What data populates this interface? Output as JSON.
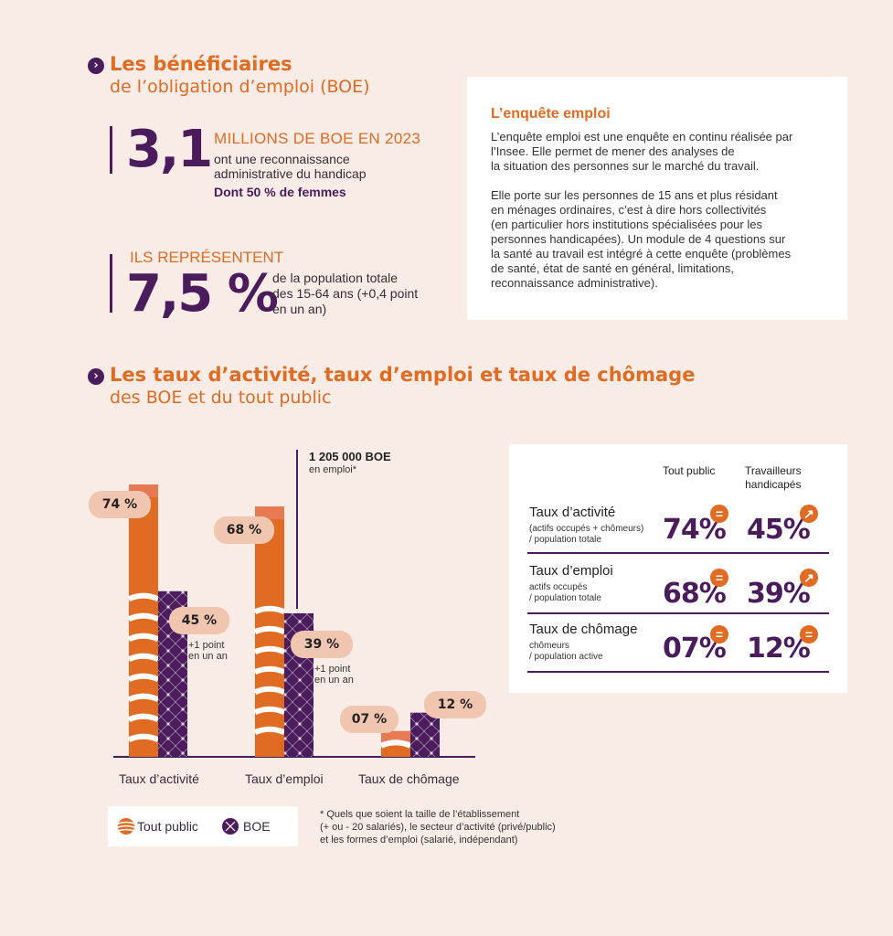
{
  "sections": {
    "s1": {
      "title": "Les bénéficiaires",
      "subtitle": "de l’obligation d’emploi (BOE)"
    },
    "s2": {
      "title": "Les taux d’activité, taux d’emploi et taux de chômage",
      "subtitle": "des BOE et du tout public"
    }
  },
  "stat1": {
    "value": "3,1",
    "headline": "MILLIONS DE BOE EN 2023",
    "line1": "ont une reconnaissance",
    "line2": "administrative du handicap",
    "highlight": "Dont 50 % de femmes"
  },
  "stat2": {
    "headline": "ILS REPRÉSENTENT",
    "value": "7,5 %",
    "line1": "de la population totale",
    "line2": "des 15-64 ans (+0,4 point",
    "line3": "en un an)"
  },
  "box": {
    "title": "L’enquête emploi",
    "p1": [
      "L’enquête emploi est une enquête en continu réalisée par",
      "l’Insee. Elle permet de mener des analyses de",
      "la situation des personnes sur le marché du travail."
    ],
    "p2": [
      "Elle porte sur les personnes de 15 ans et plus résidant",
      "en ménages ordinaires, c’est à dire hors collectivités",
      "(en particulier hors institutions spécialisées pour les",
      "personnes handicapées). Un module de 4 questions sur",
      "la santé au travail est intégré à cette enquête (problèmes",
      "de santé, état de santé en général, limitations,",
      "reconnaissance administrative)."
    ]
  },
  "chart_data": {
    "type": "bar",
    "categories": [
      "Taux d’activité",
      "Taux d’emploi",
      "Taux de chômage"
    ],
    "series": [
      {
        "name": "Tout public",
        "values": [
          74,
          68,
          7
        ],
        "labels": [
          "74 %",
          "68 %",
          "07 %"
        ]
      },
      {
        "name": "BOE",
        "values": [
          45,
          39,
          12
        ],
        "labels": [
          "45 %",
          "39 %",
          "12 %"
        ]
      }
    ],
    "notes": {
      "activite": [
        "+1 point",
        "en un an"
      ],
      "emploi": [
        "+1 point",
        "en un an"
      ]
    },
    "annotation": {
      "value": "1 205 000 BOE",
      "text": "en emploi*"
    },
    "ylim": [
      0,
      80
    ],
    "colors": {
      "tout_public": "#e06b22",
      "boe": "#4b1c5c"
    }
  },
  "legend": {
    "tout_public": "Tout public",
    "boe": "BOE"
  },
  "footnote": [
    "* Quels que soient la taille de l’établissement",
    "(+ ou - 20 salariés), le secteur d’activité (privé/public)",
    "et les formes d’emploi (salarié, indépendant)"
  ],
  "table": {
    "col1": "Tout public",
    "col2": [
      "Travailleurs",
      "handicapés"
    ],
    "rows": [
      {
        "label": "Taux d’activité",
        "sub": [
          "(actifs occupés + chômeurs)",
          "/ population totale"
        ],
        "v1": "74%",
        "b1": "=",
        "v2": "45%",
        "b2": "↗"
      },
      {
        "label": "Taux d’emploi",
        "sub": [
          "actifs occupés",
          "/ population totale"
        ],
        "v1": "68%",
        "b1": "=",
        "v2": "39%",
        "b2": "↗"
      },
      {
        "label": "Taux de chômage",
        "sub": [
          "chômeurs",
          "/ population active"
        ],
        "v1": "07%",
        "b1": "=",
        "v2": "12%",
        "b2": "="
      }
    ]
  }
}
